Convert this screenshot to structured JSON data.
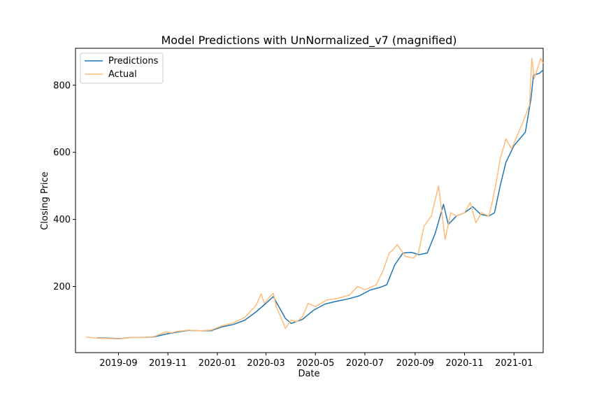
{
  "chart_data": {
    "type": "line",
    "title": "Model Predictions with UnNormalized_v7 (magnified)",
    "xlabel": "Date",
    "ylabel": "Closing Price",
    "x_type": "date",
    "xlim": [
      "2019-07-10",
      "2021-02-06"
    ],
    "ylim": [
      3,
      910
    ],
    "x_ticks": [
      "2019-09-01",
      "2019-11-01",
      "2020-01-01",
      "2020-03-01",
      "2020-05-01",
      "2020-07-01",
      "2020-09-01",
      "2020-11-01",
      "2021-01-01"
    ],
    "x_tick_labels": [
      "2019-09",
      "2019-11",
      "2020-01",
      "2020-03",
      "2020-05",
      "2020-07",
      "2020-09",
      "2020-11",
      "2021-01"
    ],
    "y_ticks": [
      200,
      400,
      600,
      800
    ],
    "y_tick_labels": [
      "200",
      "400",
      "600",
      "800"
    ],
    "grid": false,
    "legend_position": "upper-left",
    "series": [
      {
        "name": "Predictions",
        "color": "#1f77b4",
        "points": [
          [
            "2019-08-06",
            47
          ],
          [
            "2019-08-20",
            46
          ],
          [
            "2019-09-03",
            45
          ],
          [
            "2019-09-17",
            48
          ],
          [
            "2019-10-01",
            48
          ],
          [
            "2019-10-15",
            50
          ],
          [
            "2019-10-29",
            58
          ],
          [
            "2019-11-12",
            64
          ],
          [
            "2019-11-26",
            69
          ],
          [
            "2019-12-10",
            68
          ],
          [
            "2019-12-24",
            68
          ],
          [
            "2020-01-07",
            80
          ],
          [
            "2020-01-21",
            87
          ],
          [
            "2020-02-04",
            100
          ],
          [
            "2020-02-18",
            125
          ],
          [
            "2020-03-01",
            150
          ],
          [
            "2020-03-10",
            170
          ],
          [
            "2020-03-18",
            135
          ],
          [
            "2020-03-25",
            105
          ],
          [
            "2020-04-01",
            90
          ],
          [
            "2020-04-15",
            102
          ],
          [
            "2020-04-29",
            130
          ],
          [
            "2020-05-13",
            148
          ],
          [
            "2020-05-27",
            156
          ],
          [
            "2020-06-10",
            163
          ],
          [
            "2020-06-24",
            172
          ],
          [
            "2020-07-08",
            190
          ],
          [
            "2020-07-18",
            196
          ],
          [
            "2020-07-28",
            205
          ],
          [
            "2020-08-07",
            265
          ],
          [
            "2020-08-17",
            300
          ],
          [
            "2020-08-27",
            302
          ],
          [
            "2020-09-06",
            295
          ],
          [
            "2020-09-16",
            300
          ],
          [
            "2020-09-26",
            360
          ],
          [
            "2020-10-06",
            445
          ],
          [
            "2020-10-12",
            385
          ],
          [
            "2020-10-22",
            410
          ],
          [
            "2020-11-01",
            420
          ],
          [
            "2020-11-11",
            438
          ],
          [
            "2020-11-21",
            415
          ],
          [
            "2020-12-01",
            410
          ],
          [
            "2020-12-08",
            420
          ],
          [
            "2020-12-15",
            500
          ],
          [
            "2020-12-22",
            570
          ],
          [
            "2021-01-01",
            620
          ],
          [
            "2021-01-08",
            640
          ],
          [
            "2021-01-15",
            660
          ],
          [
            "2021-01-22",
            760
          ],
          [
            "2021-01-25",
            830
          ],
          [
            "2021-02-01",
            835
          ],
          [
            "2021-02-06",
            845
          ]
        ]
      },
      {
        "name": "Actual",
        "color": "#ffbb78",
        "points": [
          [
            "2019-07-23",
            49
          ],
          [
            "2019-08-06",
            46
          ],
          [
            "2019-08-20",
            45
          ],
          [
            "2019-09-03",
            44
          ],
          [
            "2019-09-17",
            48
          ],
          [
            "2019-10-01",
            48
          ],
          [
            "2019-10-15",
            51
          ],
          [
            "2019-10-29",
            64
          ],
          [
            "2019-11-05",
            62
          ],
          [
            "2019-11-12",
            66
          ],
          [
            "2019-11-26",
            70
          ],
          [
            "2019-12-10",
            68
          ],
          [
            "2019-12-24",
            70
          ],
          [
            "2020-01-07",
            83
          ],
          [
            "2020-01-21",
            92
          ],
          [
            "2020-02-04",
            108
          ],
          [
            "2020-02-18",
            145
          ],
          [
            "2020-02-24",
            178
          ],
          [
            "2020-02-28",
            150
          ],
          [
            "2020-03-06",
            170
          ],
          [
            "2020-03-10",
            180
          ],
          [
            "2020-03-14",
            138
          ],
          [
            "2020-03-20",
            105
          ],
          [
            "2020-03-25",
            75
          ],
          [
            "2020-04-01",
            100
          ],
          [
            "2020-04-08",
            95
          ],
          [
            "2020-04-15",
            110
          ],
          [
            "2020-04-22",
            150
          ],
          [
            "2020-05-01",
            140
          ],
          [
            "2020-05-15",
            160
          ],
          [
            "2020-05-29",
            165
          ],
          [
            "2020-06-12",
            175
          ],
          [
            "2020-06-22",
            200
          ],
          [
            "2020-07-01",
            190
          ],
          [
            "2020-07-15",
            205
          ],
          [
            "2020-07-24",
            250
          ],
          [
            "2020-07-31",
            300
          ],
          [
            "2020-08-05",
            310
          ],
          [
            "2020-08-10",
            325
          ],
          [
            "2020-08-20",
            290
          ],
          [
            "2020-08-30",
            285
          ],
          [
            "2020-09-05",
            300
          ],
          [
            "2020-09-12",
            380
          ],
          [
            "2020-09-21",
            410
          ],
          [
            "2020-09-30",
            500
          ],
          [
            "2020-10-08",
            340
          ],
          [
            "2020-10-15",
            420
          ],
          [
            "2020-10-22",
            410
          ],
          [
            "2020-11-01",
            420
          ],
          [
            "2020-11-08",
            450
          ],
          [
            "2020-11-15",
            390
          ],
          [
            "2020-11-22",
            420
          ],
          [
            "2020-12-01",
            410
          ],
          [
            "2020-12-05",
            450
          ],
          [
            "2020-12-10",
            510
          ],
          [
            "2020-12-15",
            580
          ],
          [
            "2020-12-22",
            640
          ],
          [
            "2020-12-29",
            610
          ],
          [
            "2021-01-05",
            650
          ],
          [
            "2021-01-12",
            690
          ],
          [
            "2021-01-20",
            740
          ],
          [
            "2021-01-23",
            880
          ],
          [
            "2021-01-26",
            820
          ],
          [
            "2021-01-30",
            850
          ],
          [
            "2021-02-03",
            880
          ],
          [
            "2021-02-06",
            865
          ]
        ]
      }
    ]
  }
}
